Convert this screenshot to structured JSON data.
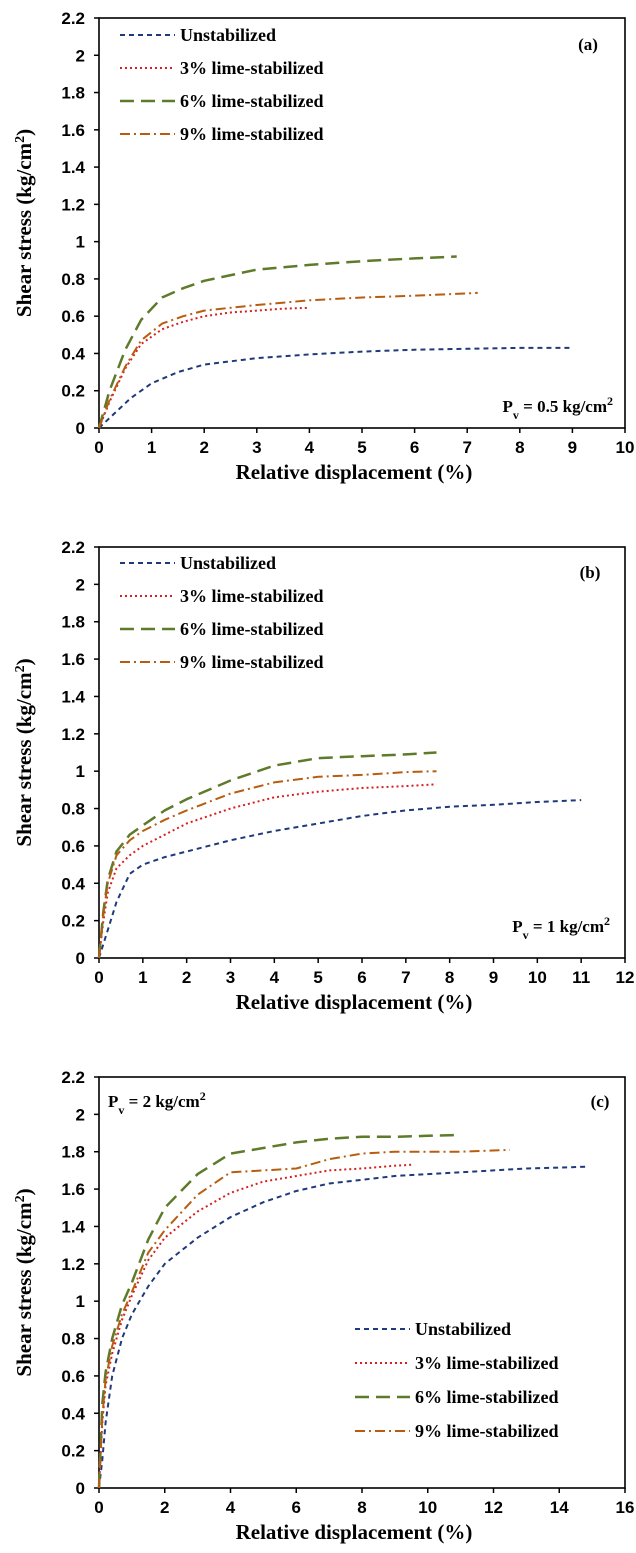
{
  "chart_data": [
    {
      "type": "line",
      "panel": "(a)",
      "annotation": "P_v = 0.5 kg/cm²",
      "xlabel": "Relative displacement  (%)",
      "ylabel": "Shear stress (kg/cm²)",
      "xlim": [
        0,
        10
      ],
      "xticks": [
        0,
        1,
        2,
        3,
        4,
        5,
        6,
        7,
        8,
        9,
        10
      ],
      "ylim": [
        0,
        2.2
      ],
      "yticks": [
        0,
        0.2,
        0.4,
        0.6,
        0.8,
        1,
        1.2,
        1.4,
        1.6,
        1.8,
        2,
        2.2
      ],
      "legend_position": "top-left",
      "series": [
        {
          "name": "Unstabilized",
          "x": [
            0,
            0.3,
            0.6,
            1,
            1.5,
            2,
            3,
            4,
            5,
            6,
            7,
            8,
            9
          ],
          "y": [
            0,
            0.08,
            0.16,
            0.24,
            0.3,
            0.34,
            0.375,
            0.395,
            0.41,
            0.42,
            0.425,
            0.43,
            0.43
          ]
        },
        {
          "name": "3% lime-stabilized",
          "x": [
            0,
            0.2,
            0.5,
            0.8,
            1.2,
            1.6,
            2,
            2.5,
            3,
            3.5,
            4
          ],
          "y": [
            0,
            0.14,
            0.32,
            0.45,
            0.53,
            0.57,
            0.6,
            0.62,
            0.63,
            0.64,
            0.645
          ]
        },
        {
          "name": "6% lime-stabilized",
          "x": [
            0,
            0.2,
            0.5,
            0.8,
            1.2,
            1.6,
            2,
            3,
            4,
            5,
            6,
            6.8
          ],
          "y": [
            0,
            0.2,
            0.42,
            0.58,
            0.7,
            0.75,
            0.79,
            0.85,
            0.875,
            0.895,
            0.91,
            0.92
          ]
        },
        {
          "name": "9% lime-stabilized",
          "x": [
            0,
            0.2,
            0.5,
            0.8,
            1.2,
            1.6,
            2,
            3,
            4,
            5,
            6,
            7.2
          ],
          "y": [
            0,
            0.15,
            0.33,
            0.47,
            0.56,
            0.6,
            0.63,
            0.66,
            0.685,
            0.7,
            0.71,
            0.725
          ]
        }
      ]
    },
    {
      "type": "line",
      "panel": "(b)",
      "annotation": "P_v = 1 kg/cm²",
      "xlabel": "Relative displacement  (%)",
      "ylabel": "Shear stress (kg/cm²)",
      "xlim": [
        0,
        12
      ],
      "xticks": [
        0,
        1,
        2,
        3,
        4,
        5,
        6,
        7,
        8,
        9,
        10,
        11,
        12
      ],
      "ylim": [
        0,
        2.2
      ],
      "yticks": [
        0,
        0.2,
        0.4,
        0.6,
        0.8,
        1,
        1.2,
        1.4,
        1.6,
        1.8,
        2,
        2.2
      ],
      "legend_position": "top-left",
      "series": [
        {
          "name": "Unstabilized",
          "x": [
            0,
            0.2,
            0.4,
            0.7,
            1,
            1.5,
            2,
            3,
            4,
            5,
            6,
            7,
            8,
            9,
            10,
            11
          ],
          "y": [
            0,
            0.15,
            0.3,
            0.45,
            0.5,
            0.54,
            0.57,
            0.63,
            0.68,
            0.72,
            0.76,
            0.79,
            0.81,
            0.82,
            0.835,
            0.845
          ]
        },
        {
          "name": "3% lime-stabilized",
          "x": [
            0,
            0.1,
            0.2,
            0.4,
            0.7,
            1,
            1.5,
            2,
            3,
            4,
            5,
            6,
            7,
            7.7
          ],
          "y": [
            0,
            0.2,
            0.35,
            0.48,
            0.55,
            0.6,
            0.66,
            0.72,
            0.8,
            0.86,
            0.89,
            0.91,
            0.92,
            0.93
          ]
        },
        {
          "name": "6% lime-stabilized",
          "x": [
            0,
            0.1,
            0.2,
            0.4,
            0.7,
            1,
            1.5,
            2,
            3,
            4,
            5,
            6,
            7,
            7.7
          ],
          "y": [
            0,
            0.25,
            0.42,
            0.57,
            0.66,
            0.71,
            0.79,
            0.85,
            0.95,
            1.03,
            1.07,
            1.08,
            1.09,
            1.1
          ]
        },
        {
          "name": "9% lime-stabilized",
          "x": [
            0,
            0.1,
            0.2,
            0.4,
            0.7,
            1,
            1.5,
            2,
            3,
            4,
            5,
            6,
            7,
            7.7
          ],
          "y": [
            0,
            0.24,
            0.4,
            0.55,
            0.63,
            0.68,
            0.74,
            0.79,
            0.88,
            0.94,
            0.97,
            0.98,
            0.995,
            1.0
          ]
        }
      ]
    },
    {
      "type": "line",
      "panel": "(c)",
      "annotation": "P_v = 2 kg/cm²",
      "xlabel": "Relative displacement  (%)",
      "ylabel": "Shear stress (kg/cm²)",
      "xlim": [
        0,
        16
      ],
      "xticks": [
        0,
        2,
        4,
        6,
        8,
        10,
        12,
        14,
        16
      ],
      "ylim": [
        0,
        2.2
      ],
      "yticks": [
        0,
        0.2,
        0.4,
        0.6,
        0.8,
        1,
        1.2,
        1.4,
        1.6,
        1.8,
        2,
        2.2
      ],
      "legend_position": "bottom-right",
      "series": [
        {
          "name": "Unstabilized",
          "x": [
            0,
            0.1,
            0.2,
            0.4,
            0.7,
            1,
            1.5,
            2,
            3,
            4,
            5,
            6,
            7,
            8,
            9,
            10,
            11,
            12,
            13,
            14,
            14.8
          ],
          "y": [
            0,
            0.15,
            0.35,
            0.6,
            0.8,
            0.93,
            1.08,
            1.2,
            1.34,
            1.45,
            1.53,
            1.59,
            1.63,
            1.65,
            1.67,
            1.68,
            1.69,
            1.7,
            1.71,
            1.715,
            1.72
          ]
        },
        {
          "name": "3% lime-stabilized",
          "x": [
            0,
            0.1,
            0.2,
            0.4,
            0.7,
            1,
            1.5,
            2,
            3,
            4,
            5,
            6,
            7,
            8,
            9,
            9.5
          ],
          "y": [
            0,
            0.35,
            0.55,
            0.72,
            0.9,
            1.03,
            1.22,
            1.34,
            1.48,
            1.58,
            1.64,
            1.67,
            1.7,
            1.71,
            1.725,
            1.73
          ]
        },
        {
          "name": "6% lime-stabilized",
          "x": [
            0,
            0.1,
            0.2,
            0.4,
            0.7,
            1,
            1.5,
            2,
            3,
            4,
            5,
            6,
            7,
            8,
            9,
            10,
            11
          ],
          "y": [
            0,
            0.45,
            0.62,
            0.8,
            0.98,
            1.1,
            1.33,
            1.5,
            1.68,
            1.79,
            1.82,
            1.85,
            1.87,
            1.88,
            1.88,
            1.885,
            1.89
          ]
        },
        {
          "name": "9% lime-stabilized",
          "x": [
            0,
            0.1,
            0.2,
            0.4,
            0.7,
            1,
            1.5,
            2,
            3,
            4,
            5,
            6,
            7,
            8,
            9,
            10,
            11,
            12.5
          ],
          "y": [
            0,
            0.38,
            0.58,
            0.76,
            0.93,
            1.05,
            1.26,
            1.38,
            1.57,
            1.69,
            1.7,
            1.71,
            1.76,
            1.79,
            1.8,
            1.8,
            1.8,
            1.81
          ]
        }
      ]
    }
  ],
  "series_styles": [
    {
      "color": "#1f3a7a",
      "dash": "5,4",
      "width": 2
    },
    {
      "color": "#d62020",
      "dash": "2,3",
      "width": 2
    },
    {
      "color": "#5e7a2b",
      "dash": "14,7",
      "width": 2.5
    },
    {
      "color": "#b85d10",
      "dash": "10,4,2,4",
      "width": 2
    }
  ]
}
